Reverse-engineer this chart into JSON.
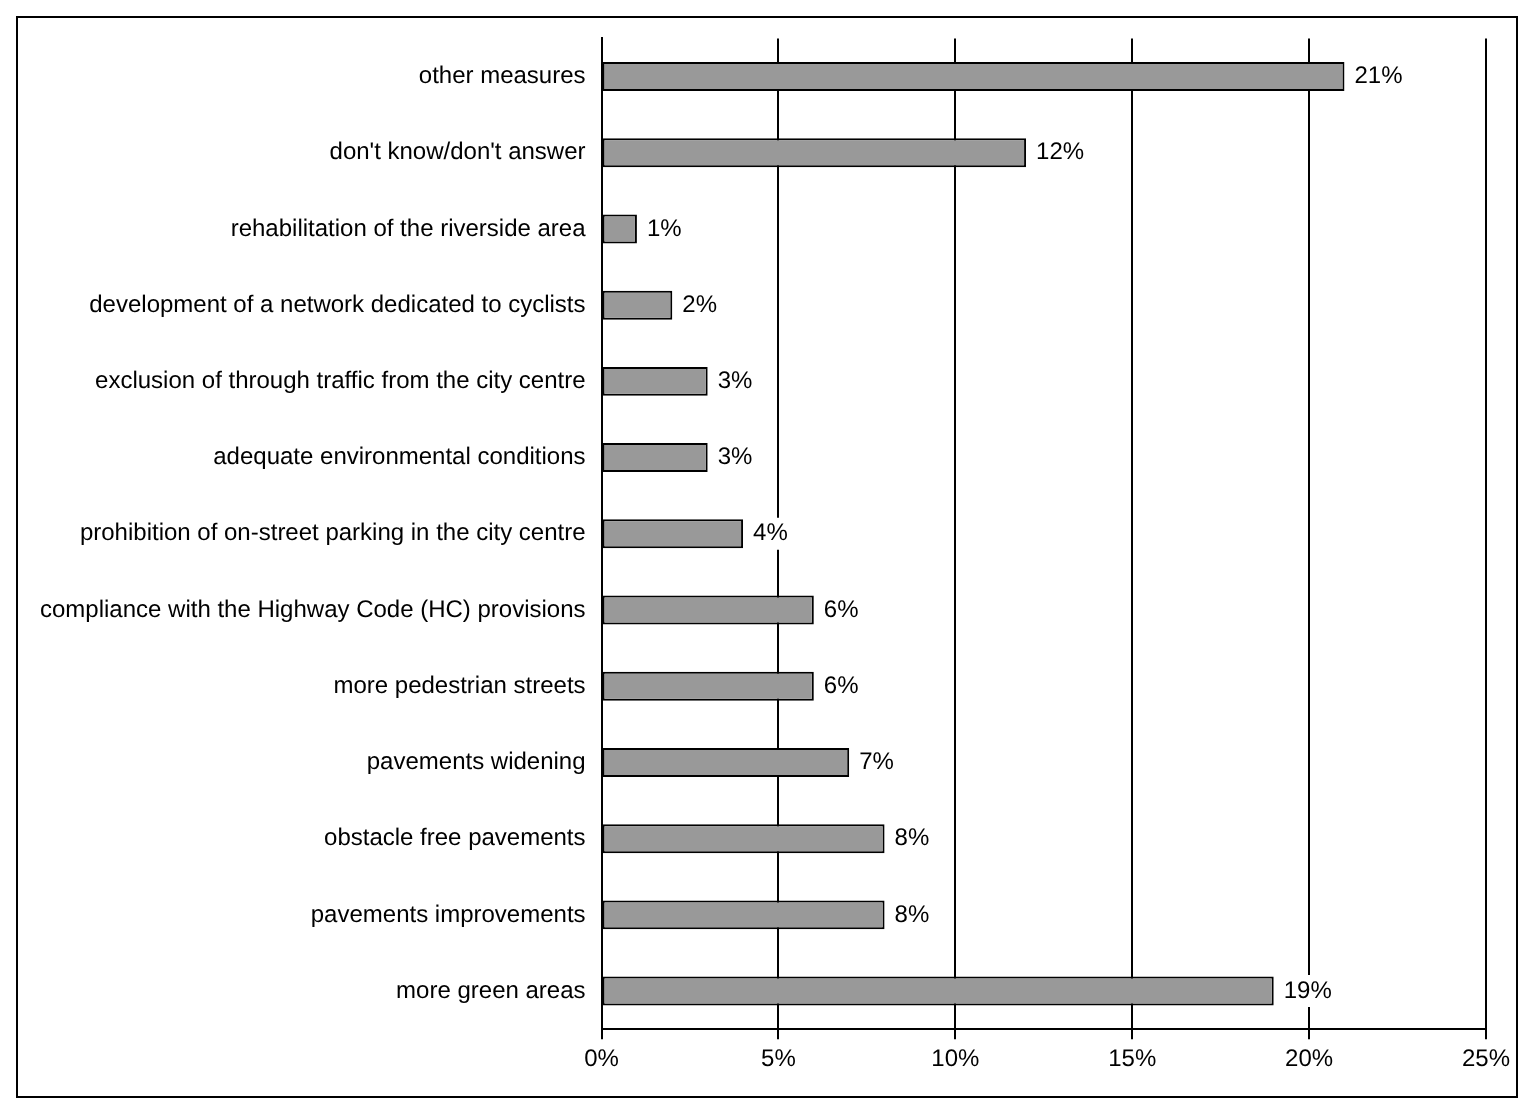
{
  "chart_data": {
    "type": "bar",
    "orientation": "horizontal",
    "categories": [
      "other measures",
      "don't know/don't answer",
      "rehabilitation of the riverside area",
      "development of a network dedicated to cyclists",
      "exclusion of through traffic from the city centre",
      "adequate environmental conditions",
      "prohibition of on-street parking in the city centre",
      "compliance with the Highway Code (HC) provisions",
      "more pedestrian streets",
      "pavements widening",
      "obstacle free pavements",
      "pavements improvements",
      "more green areas"
    ],
    "values": [
      21,
      12,
      1,
      2,
      3,
      3,
      4,
      6,
      6,
      7,
      8,
      8,
      19
    ],
    "value_labels": [
      "21%",
      "12%",
      "1%",
      "2%",
      "3%",
      "3%",
      "4%",
      "6%",
      "6%",
      "7%",
      "8%",
      "8%",
      "19%"
    ],
    "color": "#999999",
    "xlim": [
      0,
      25
    ],
    "xticks": [
      {
        "value": 0,
        "label": "0%"
      },
      {
        "value": 5,
        "label": "5%"
      },
      {
        "value": 10,
        "label": "10%"
      },
      {
        "value": 15,
        "label": "15%"
      },
      {
        "value": 20,
        "label": "20%"
      },
      {
        "value": 25,
        "label": "25%"
      }
    ],
    "grid": "x",
    "legend": false
  }
}
